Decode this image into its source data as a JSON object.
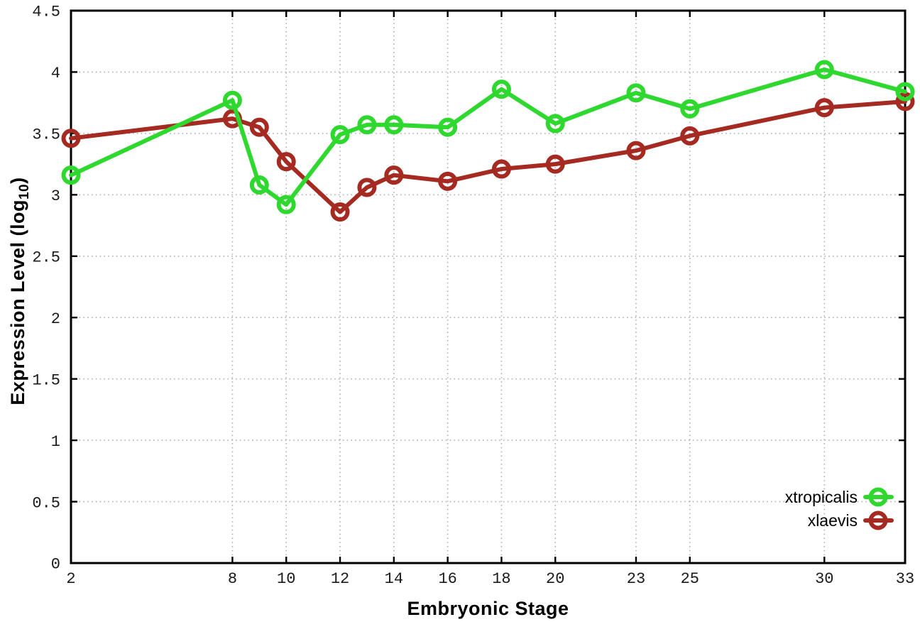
{
  "labels": {
    "ylabel_pre": "Expression Level (log",
    "ylabel_sub": "10",
    "ylabel_post": ")",
    "xlabel": "Embryonic Stage"
  },
  "chart_data": {
    "type": "line",
    "title": "",
    "xlabel": "Embryonic Stage",
    "ylabel": "Expression Level (log10)",
    "xlim": [
      2,
      33
    ],
    "ylim": [
      0,
      4.5
    ],
    "grid": true,
    "legend_position": "bottom-right",
    "x": [
      2,
      8,
      9,
      10,
      12,
      13,
      14,
      16,
      18,
      20,
      23,
      25,
      30,
      33
    ],
    "x_ticks": [
      2,
      8,
      10,
      12,
      14,
      16,
      18,
      20,
      23,
      25,
      30,
      33
    ],
    "x_tick_labels": [
      "2",
      "8",
      "10",
      "12",
      "14",
      "16",
      "18",
      "20",
      "23",
      "25",
      "30",
      "33"
    ],
    "y_ticks": [
      0,
      0.5,
      1,
      1.5,
      2,
      2.5,
      3,
      3.5,
      4,
      4.5
    ],
    "y_tick_labels": [
      "0",
      "0.5",
      "1",
      "1.5",
      "2",
      "2.5",
      "3",
      "3.5",
      "4",
      "4.5"
    ],
    "series": [
      {
        "name": "xtropicalis",
        "color": "#2fd82f",
        "values": [
          3.16,
          3.77,
          3.08,
          2.92,
          3.49,
          3.57,
          3.57,
          3.55,
          3.86,
          3.58,
          3.83,
          3.7,
          4.02,
          3.84
        ]
      },
      {
        "name": "xlaevis",
        "color": "#a52a22",
        "values": [
          3.46,
          3.62,
          3.55,
          3.27,
          2.86,
          3.06,
          3.16,
          3.11,
          3.21,
          3.25,
          3.36,
          3.48,
          3.71,
          3.76
        ]
      }
    ],
    "colors": {
      "background": "#ffffff",
      "axis": "#000000",
      "grid": "#b0b0b0",
      "tick_text": "#1a1a1a",
      "legend_text": "#000000"
    }
  }
}
